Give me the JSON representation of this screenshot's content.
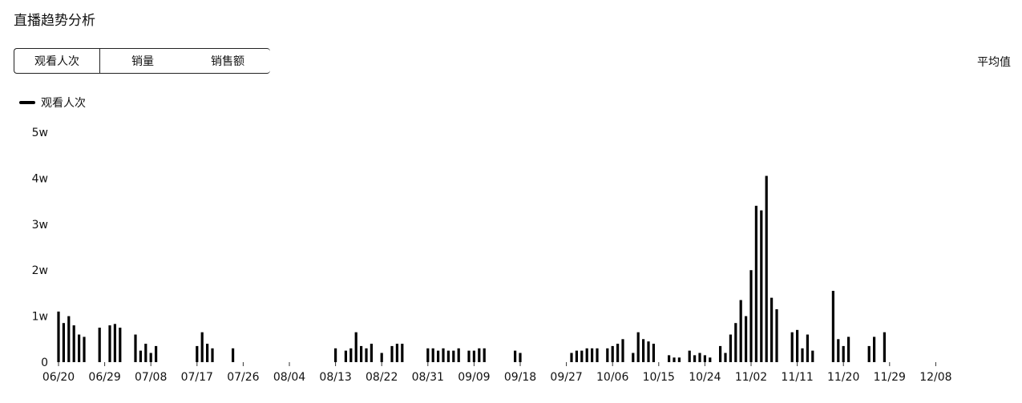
{
  "header": {
    "title": "直播趋势分析"
  },
  "tabs": [
    {
      "label": "观看人次",
      "active": true
    },
    {
      "label": "销量",
      "active": false
    },
    {
      "label": "销售额",
      "active": false
    }
  ],
  "average_label": "平均值",
  "legend": {
    "label": "观看人次"
  },
  "chart_data": {
    "type": "bar",
    "series": [
      {
        "name": "观看人次"
      }
    ],
    "y_ticks": [
      "0",
      "1w",
      "2w",
      "3w",
      "4w",
      "5w"
    ],
    "ylim": [
      0,
      50000
    ],
    "x_ticks": [
      "06/20",
      "06/29",
      "07/08",
      "07/17",
      "07/26",
      "08/04",
      "08/13",
      "08/22",
      "08/31",
      "09/09",
      "09/18",
      "09/27",
      "10/06",
      "10/15",
      "10/24",
      "11/02",
      "11/11",
      "11/20",
      "11/29",
      "12/08"
    ],
    "x_start": "2023-06-20",
    "points": [
      [
        0,
        11000
      ],
      [
        1,
        8500
      ],
      [
        2,
        10000
      ],
      [
        3,
        8000
      ],
      [
        4,
        6000
      ],
      [
        5,
        5500
      ],
      [
        8,
        7500
      ],
      [
        10,
        8000
      ],
      [
        11,
        8300
      ],
      [
        12,
        7500
      ],
      [
        15,
        6000
      ],
      [
        16,
        2500
      ],
      [
        17,
        4000
      ],
      [
        18,
        2000
      ],
      [
        19,
        3500
      ],
      [
        27,
        3500
      ],
      [
        28,
        6500
      ],
      [
        29,
        4000
      ],
      [
        30,
        3000
      ],
      [
        34,
        3000
      ],
      [
        54,
        3000
      ],
      [
        56,
        2500
      ],
      [
        57,
        3000
      ],
      [
        58,
        6500
      ],
      [
        59,
        3500
      ],
      [
        60,
        3000
      ],
      [
        61,
        4000
      ],
      [
        63,
        2000
      ],
      [
        65,
        3500
      ],
      [
        66,
        4000
      ],
      [
        67,
        4000
      ],
      [
        72,
        3000
      ],
      [
        73,
        3000
      ],
      [
        74,
        2500
      ],
      [
        75,
        3000
      ],
      [
        76,
        2500
      ],
      [
        77,
        2500
      ],
      [
        78,
        3000
      ],
      [
        80,
        2500
      ],
      [
        81,
        2500
      ],
      [
        82,
        3000
      ],
      [
        83,
        3000
      ],
      [
        89,
        2500
      ],
      [
        90,
        2000
      ],
      [
        100,
        2000
      ],
      [
        101,
        2500
      ],
      [
        102,
        2500
      ],
      [
        103,
        3000
      ],
      [
        104,
        3000
      ],
      [
        105,
        3000
      ],
      [
        107,
        3000
      ],
      [
        108,
        3500
      ],
      [
        109,
        4000
      ],
      [
        110,
        5000
      ],
      [
        112,
        2000
      ],
      [
        113,
        6500
      ],
      [
        114,
        5000
      ],
      [
        115,
        4500
      ],
      [
        116,
        4000
      ],
      [
        119,
        1500
      ],
      [
        120,
        1000
      ],
      [
        121,
        1000
      ],
      [
        123,
        2500
      ],
      [
        124,
        1500
      ],
      [
        125,
        2000
      ],
      [
        126,
        1500
      ],
      [
        127,
        1000
      ],
      [
        129,
        3500
      ],
      [
        130,
        2000
      ],
      [
        131,
        6000
      ],
      [
        132,
        8500
      ],
      [
        133,
        13500
      ],
      [
        134,
        10000
      ],
      [
        135,
        20000
      ],
      [
        136,
        34000
      ],
      [
        137,
        33000
      ],
      [
        138,
        40500
      ],
      [
        139,
        14000
      ],
      [
        140,
        11500
      ],
      [
        143,
        6500
      ],
      [
        144,
        7000
      ],
      [
        145,
        3000
      ],
      [
        146,
        6000
      ],
      [
        147,
        2500
      ],
      [
        151,
        15500
      ],
      [
        152,
        5000
      ],
      [
        153,
        3500
      ],
      [
        154,
        5500
      ],
      [
        158,
        3500
      ],
      [
        159,
        5500
      ],
      [
        161,
        6500
      ]
    ]
  }
}
